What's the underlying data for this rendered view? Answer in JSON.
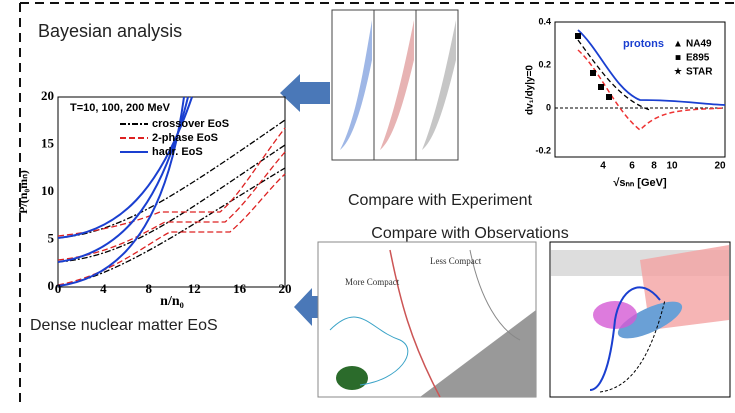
{
  "labels": {
    "bayesian": "Bayesian analysis",
    "experiment": "Compare with Experiment",
    "observations": "Compare with Observations",
    "eos": "Dense nuclear matter EoS"
  },
  "eos_plot": {
    "title": "T=10, 100, 200 MeV",
    "x_label": "n/n₀",
    "y_label": "P/(n₀mₙ)",
    "xticks": [
      "0",
      "4",
      "8",
      "12",
      "16",
      "20"
    ],
    "yticks": [
      "0",
      "5",
      "10",
      "15",
      "20"
    ],
    "legend": [
      "crossover EoS",
      "2-phase EoS",
      "hadr. EoS"
    ]
  },
  "flow_plot": {
    "label": "protons",
    "legend": [
      "NA49",
      "E895",
      "STAR"
    ],
    "y_label": "dv₁/dy|y=0",
    "x_label": "√sₙₙ [GeV]",
    "yticks": [
      "0.4",
      "0.2",
      "0",
      "-0.2"
    ],
    "xticks": [
      "4",
      "6",
      "8",
      "10",
      "20"
    ]
  },
  "contour_plot": {
    "annotations": [
      "Less Compact",
      "More Compact"
    ]
  }
}
